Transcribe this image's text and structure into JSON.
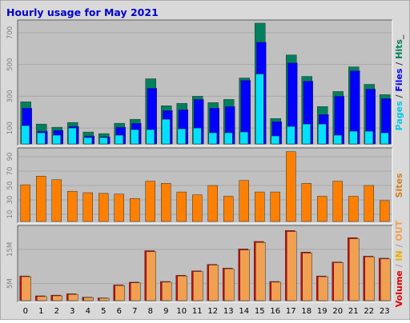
{
  "title": "Hourly usage for May 2021",
  "colors": {
    "background": "#d9d9d9",
    "plot_background": "#c0c0c0",
    "title": "#0000cc",
    "hits": "#00805c",
    "files": "#0000ff",
    "pages": "#00e0ff",
    "sites": "#ff8000",
    "volume": "#e00000",
    "in": "#f0a050",
    "out": "#e8b000"
  },
  "chart_data": [
    {
      "type": "bar",
      "title": "Hourly usage for May 2021",
      "categories": [
        "0",
        "1",
        "2",
        "3",
        "4",
        "5",
        "6",
        "7",
        "8",
        "9",
        "10",
        "11",
        "12",
        "13",
        "14",
        "15",
        "16",
        "17",
        "18",
        "19",
        "20",
        "21",
        "22",
        "23"
      ],
      "yticks": [
        100,
        300,
        500,
        700
      ],
      "ylim": [
        0,
        770
      ],
      "right_label": [
        {
          "text": "Pages",
          "color": "#00c8e8"
        },
        {
          "text": " / ",
          "color": "#404040"
        },
        {
          "text": "Files",
          "color": "#0000ff"
        },
        {
          "text": " / ",
          "color": "#404040"
        },
        {
          "text": "Hits",
          "color": "#00805c"
        },
        {
          "text": "_",
          "color": "#404040"
        }
      ],
      "series": [
        {
          "name": "Hits",
          "color": "#00805c",
          "values": [
            265,
            125,
            105,
            135,
            75,
            65,
            130,
            155,
            410,
            240,
            255,
            300,
            260,
            280,
            415,
            760,
            160,
            560,
            425,
            235,
            330,
            485,
            375,
            310
          ]
        },
        {
          "name": "Files",
          "color": "#0000ff",
          "values": [
            225,
            80,
            85,
            110,
            50,
            45,
            105,
            130,
            350,
            210,
            215,
            280,
            225,
            235,
            400,
            640,
            140,
            510,
            395,
            185,
            300,
            460,
            345,
            285
          ]
        },
        {
          "name": "Pages",
          "color": "#00e0ff",
          "values": [
            115,
            70,
            55,
            100,
            40,
            40,
            55,
            90,
            90,
            155,
            95,
            100,
            70,
            70,
            75,
            440,
            50,
            110,
            125,
            125,
            55,
            80,
            80,
            70
          ]
        }
      ]
    },
    {
      "type": "bar",
      "yticks": [
        10,
        30,
        50,
        70,
        90
      ],
      "ylim": [
        0,
        100
      ],
      "right_label": [
        {
          "text": "Sites",
          "color": "#d08020"
        }
      ],
      "series": [
        {
          "name": "Sites",
          "color": "#ff8000",
          "values": [
            51,
            63,
            58,
            42,
            40,
            39,
            38,
            32,
            56,
            53,
            41,
            37,
            50,
            35,
            57,
            41,
            41,
            97,
            53,
            35,
            56,
            35,
            50,
            29
          ]
        }
      ]
    },
    {
      "type": "bar",
      "yticks": [
        5,
        15
      ],
      "tick_suffix": "M",
      "ylim": [
        0,
        21.5
      ],
      "right_label": [
        {
          "text": "Volume",
          "color": "#e00000"
        },
        {
          "text": " / ",
          "color": "#a0a0a0"
        },
        {
          "text": "IN",
          "color": "#e8b000"
        },
        {
          "text": " / ",
          "color": "#a0a0a0"
        },
        {
          "text": "OUT",
          "color": "#f0a050"
        }
      ],
      "series": [
        {
          "name": "Volume",
          "color": "#e00000",
          "values": [
            7.2,
            1.4,
            1.6,
            2.0,
            1.0,
            0.8,
            4.6,
            5.4,
            14.6,
            5.6,
            7.4,
            8.7,
            10.6,
            9.5,
            15.1,
            17.3,
            5.6,
            20.5,
            14.2,
            7.2,
            11.3,
            18.4,
            13.0,
            12.4
          ]
        },
        {
          "name": "OUT",
          "color": "#f0a050",
          "values": [
            7.0,
            1.2,
            1.4,
            1.8,
            0.9,
            0.7,
            4.4,
            5.2,
            14.3,
            5.4,
            7.2,
            8.5,
            10.4,
            9.3,
            14.8,
            17.0,
            5.4,
            20.2,
            13.9,
            7.0,
            11.1,
            18.1,
            12.8,
            12.2
          ]
        }
      ]
    }
  ]
}
